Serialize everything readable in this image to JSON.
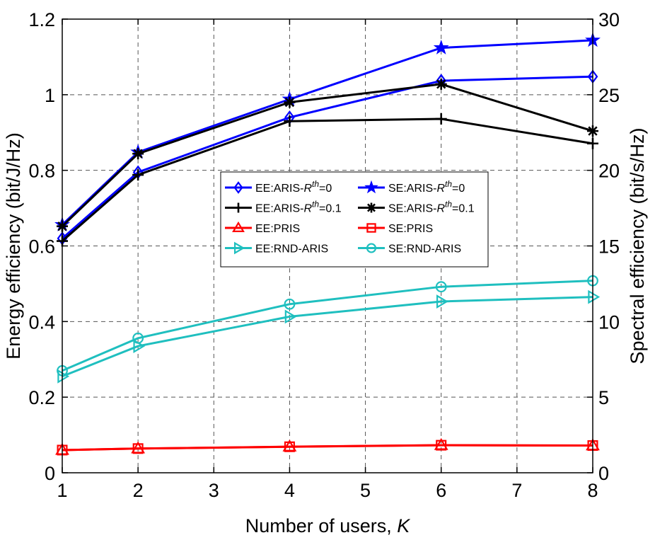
{
  "chart_data": {
    "type": "line",
    "xlabel": "Number of users, ",
    "xlabel_italic": "K",
    "ylabel_left": "Energy efficiency (bit/J/Hz)",
    "ylabel_right": "Spectral efficiency (bit/s/Hz)",
    "xlim": [
      1,
      8
    ],
    "ylim_left": [
      0,
      1.2
    ],
    "ylim_right": [
      0,
      30
    ],
    "x_ticks": [
      "1",
      "2",
      "3",
      "4",
      "5",
      "6",
      "7",
      "8"
    ],
    "y_left_ticks": [
      "0",
      "0.2",
      "0.4",
      "0.6",
      "0.8",
      "1",
      "1.2"
    ],
    "y_right_ticks": [
      "0",
      "5",
      "10",
      "15",
      "20",
      "25",
      "30"
    ],
    "grid": true,
    "legend_position": "center",
    "series": [
      {
        "name": "EE:ARIS-",
        "sup": "th",
        "suffix": "=0",
        "axis": "left",
        "color": "#0000ff",
        "marker": "diamond",
        "x": [
          1,
          2,
          4,
          6,
          8
        ],
        "values": [
          0.62,
          0.795,
          0.94,
          1.037,
          1.048
        ]
      },
      {
        "name": "SE:ARIS-",
        "sup": "th",
        "suffix": "=0",
        "axis": "right",
        "color": "#0000ff",
        "marker": "star",
        "x": [
          1,
          2,
          4,
          6,
          8
        ],
        "values": [
          16.4,
          21.2,
          24.7,
          28.1,
          28.6
        ]
      },
      {
        "name": "EE:ARIS-",
        "sup": "th",
        "suffix": "=0.1",
        "axis": "left",
        "color": "#000000",
        "marker": "plus",
        "x": [
          1,
          2,
          4,
          6,
          8
        ],
        "values": [
          0.613,
          0.788,
          0.93,
          0.936,
          0.871
        ]
      },
      {
        "name": "SE:ARIS-",
        "sup": "th",
        "suffix": "=0.1",
        "axis": "right",
        "color": "#000000",
        "marker": "asterisk",
        "x": [
          1,
          2,
          4,
          6,
          8
        ],
        "values": [
          16.3,
          21.1,
          24.5,
          25.7,
          22.6
        ]
      },
      {
        "name": "EE:PRIS",
        "axis": "left",
        "color": "#ff0000",
        "marker": "triangle",
        "x": [
          1,
          2,
          4,
          6,
          8
        ],
        "values": [
          0.06,
          0.064,
          0.069,
          0.073,
          0.072
        ]
      },
      {
        "name": "SE:PRIS",
        "axis": "right",
        "color": "#ff0000",
        "marker": "square",
        "x": [
          1,
          2,
          4,
          6,
          8
        ],
        "values": [
          1.5,
          1.6,
          1.72,
          1.82,
          1.8
        ]
      },
      {
        "name": "EE:RND-ARIS",
        "axis": "left",
        "color": "#1fbfbf",
        "marker": "triangle-right",
        "x": [
          1,
          2,
          4,
          6,
          8
        ],
        "values": [
          0.255,
          0.335,
          0.413,
          0.453,
          0.465
        ]
      },
      {
        "name": "SE:RND-ARIS",
        "axis": "right",
        "color": "#1fbfbf",
        "marker": "circle",
        "x": [
          1,
          2,
          4,
          6,
          8
        ],
        "values": [
          6.75,
          8.9,
          11.15,
          12.3,
          12.7
        ]
      }
    ]
  }
}
